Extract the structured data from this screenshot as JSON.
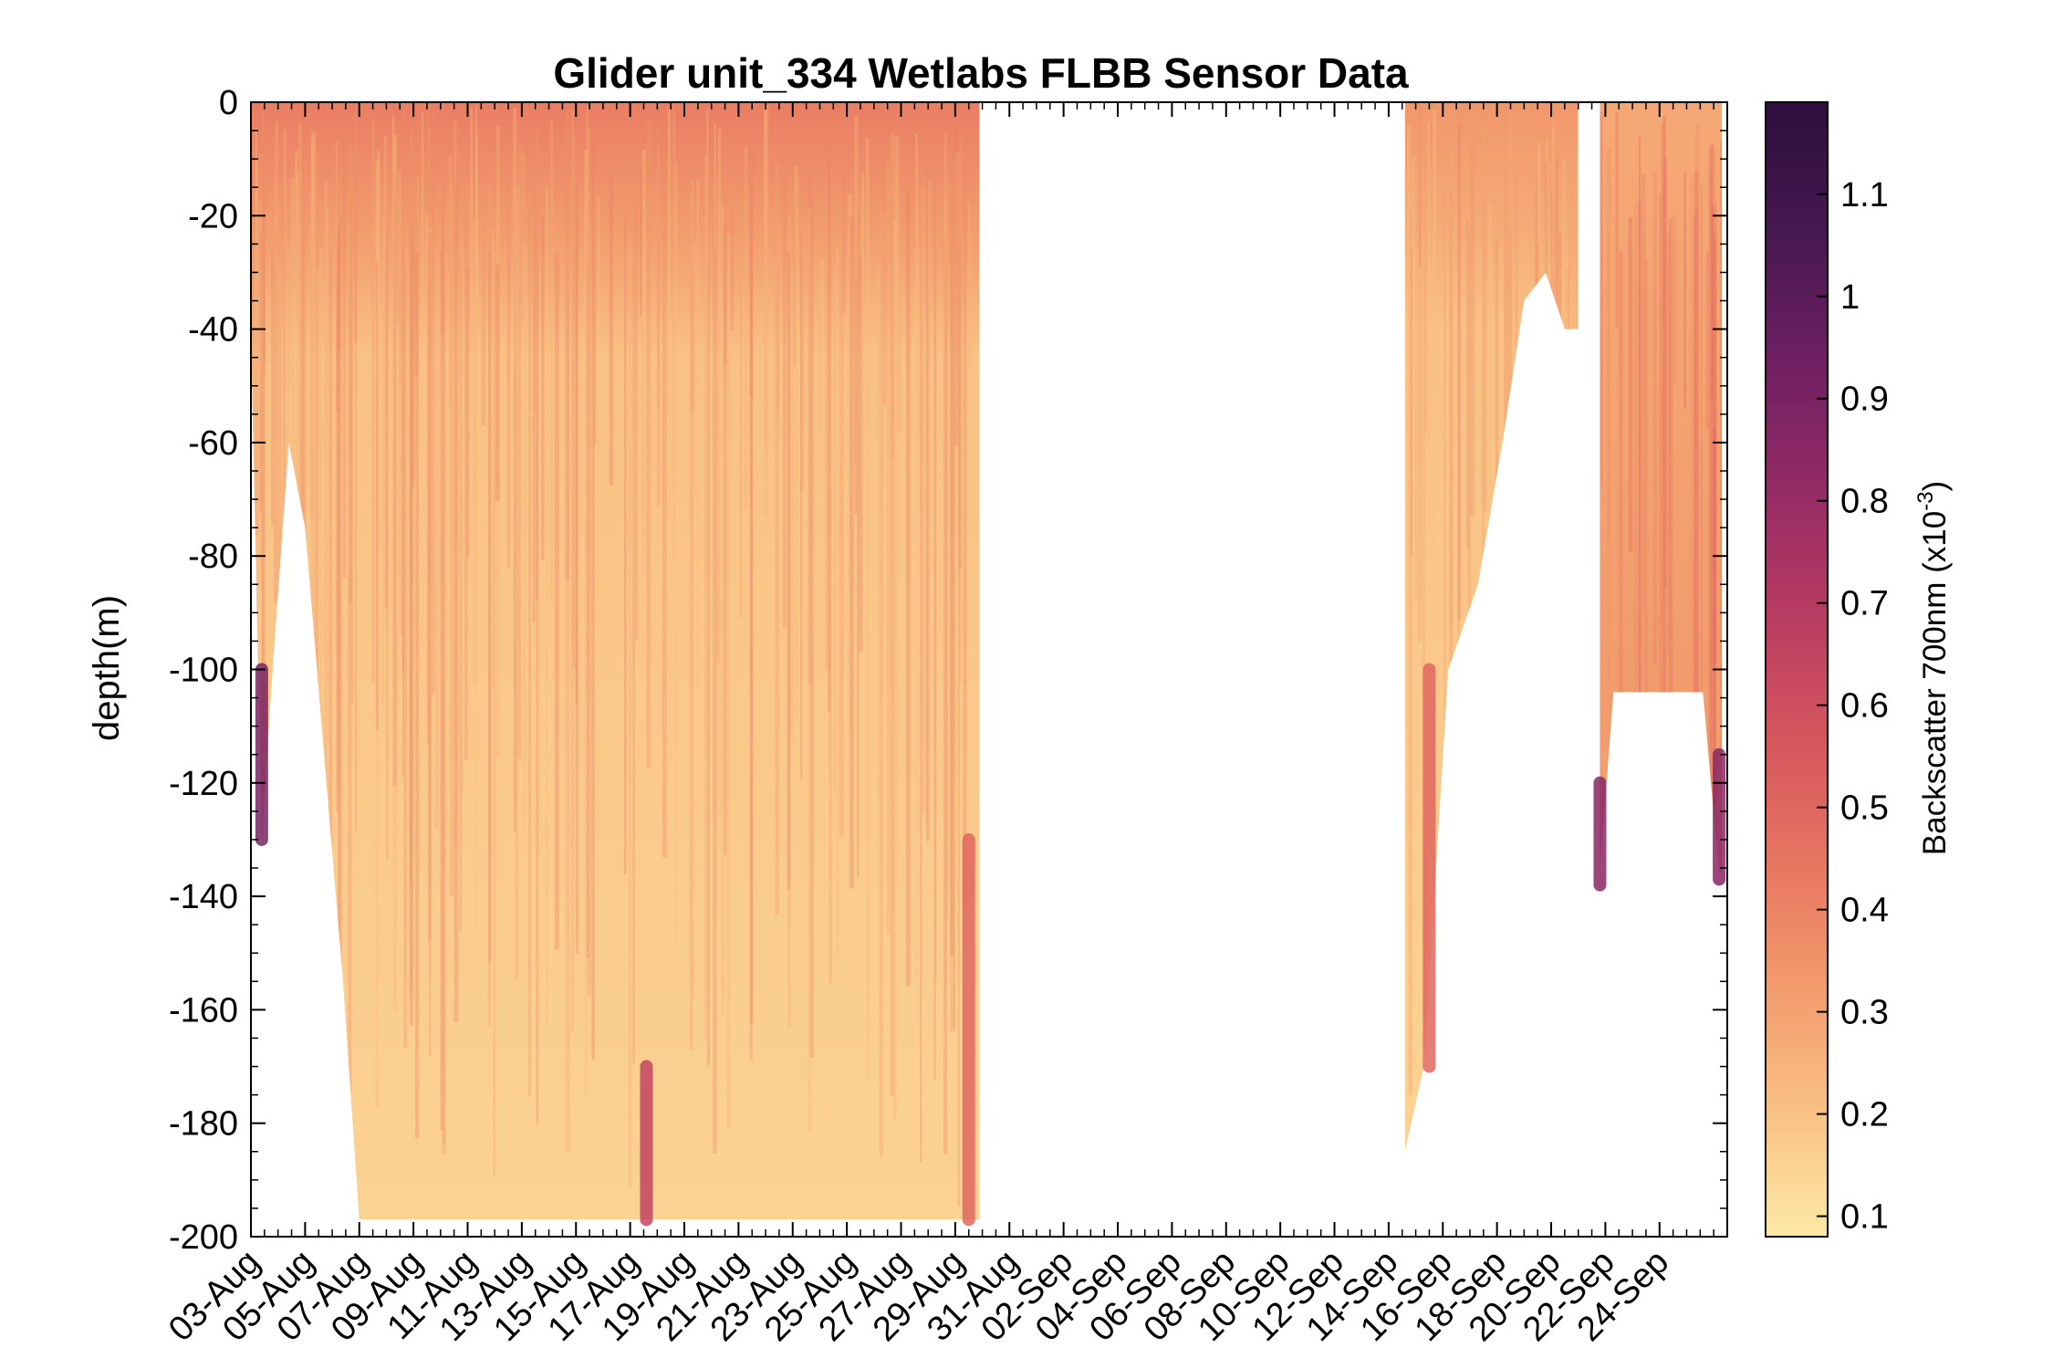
{
  "chart_data": {
    "type": "scatter",
    "title": "Glider unit_334 Wetlabs FLBB Sensor Data",
    "ylabel": "depth(m)",
    "colorbar_label_main": "Backscatter 700nm (x10",
    "colorbar_label_exp": "-3",
    "colorbar_label_close": ")",
    "ylim": [
      -200,
      0
    ],
    "yticks": [
      0,
      -20,
      -40,
      -60,
      -80,
      -100,
      -120,
      -140,
      -160,
      -180,
      -200
    ],
    "ytick_labels": [
      "0",
      "-20",
      "-40",
      "-60",
      "-80",
      "-100",
      "-120",
      "-140",
      "-160",
      "-180",
      "-200"
    ],
    "xlim_days": [
      0,
      54.5
    ],
    "xtick_labels": [
      "03-Aug",
      "05-Aug",
      "07-Aug",
      "09-Aug",
      "11-Aug",
      "13-Aug",
      "15-Aug",
      "17-Aug",
      "19-Aug",
      "21-Aug",
      "23-Aug",
      "25-Aug",
      "27-Aug",
      "29-Aug",
      "31-Aug",
      "02-Sep",
      "04-Sep",
      "06-Sep",
      "08-Sep",
      "10-Sep",
      "12-Sep",
      "14-Sep",
      "16-Sep",
      "18-Sep",
      "20-Sep",
      "22-Sep",
      "24-Sep"
    ],
    "colorbar": {
      "colormap": "matter",
      "range": [
        0.08,
        1.19
      ],
      "ticks": [
        0.1,
        0.2,
        0.3,
        0.4,
        0.5,
        0.6,
        0.7,
        0.8,
        0.9,
        1,
        1.1
      ],
      "tick_labels": [
        "0.1",
        "0.2",
        "0.3",
        "0.4",
        "0.5",
        "0.6",
        "0.7",
        "0.8",
        "0.9",
        "1",
        "1.1"
      ],
      "stops": [
        "#fde9a5",
        "#f9c083",
        "#f29a6c",
        "#e77460",
        "#d5545e",
        "#b63a62",
        "#922a66",
        "#6c1f62",
        "#451850",
        "#2f0f3d"
      ]
    },
    "segments": [
      {
        "name": "deployment-1",
        "start_day": 0,
        "end_day": 26.9,
        "bottom_profile": [
          [
            0,
            -40
          ],
          [
            0.4,
            -130
          ],
          [
            0.8,
            -100
          ],
          [
            1.4,
            -60
          ],
          [
            2.0,
            -75
          ],
          [
            3.4,
            -155
          ],
          [
            4.0,
            -197
          ],
          [
            26.9,
            -197
          ]
        ],
        "surface_layer": {
          "top": 0,
          "bottom": -45,
          "value_top": 0.42,
          "value_bottom": 0.2
        },
        "deep_value": 0.15
      },
      {
        "name": "deployment-2",
        "start_day": 42.6,
        "end_day": 49.0,
        "bottom_profile": [
          [
            42.6,
            -185
          ],
          [
            43.3,
            -170
          ],
          [
            44.2,
            -100
          ],
          [
            45.3,
            -85
          ],
          [
            46.2,
            -60
          ],
          [
            47.0,
            -35
          ],
          [
            47.8,
            -30
          ],
          [
            48.5,
            -40
          ],
          [
            49.0,
            -40
          ]
        ],
        "surface_layer": {
          "top": 0,
          "bottom": -40,
          "value_top": 0.34,
          "value_bottom": 0.2
        },
        "deep_value": 0.15
      },
      {
        "name": "deployment-3",
        "start_day": 49.8,
        "end_day": 54.3,
        "bottom_profile": [
          [
            49.8,
            -135
          ],
          [
            50.3,
            -104
          ],
          [
            53.6,
            -104
          ],
          [
            54.2,
            -136
          ],
          [
            54.3,
            -136
          ]
        ],
        "surface_layer": {
          "top": 0,
          "bottom": -100,
          "value_top": 0.28,
          "value_bottom": 0.32
        },
        "deep_value": 0.3
      }
    ],
    "highlights": [
      {
        "day": 0.4,
        "depth_top": -100,
        "depth_bottom": -130,
        "value": 0.9
      },
      {
        "day": 26.5,
        "depth_top": -130,
        "depth_bottom": -197,
        "value": 0.5
      },
      {
        "day": 14.6,
        "depth_top": -170,
        "depth_bottom": -197,
        "value": 0.65
      },
      {
        "day": 49.8,
        "depth_top": -120,
        "depth_bottom": -138,
        "value": 0.85
      },
      {
        "day": 54.2,
        "depth_top": -115,
        "depth_bottom": -137,
        "value": 0.85
      },
      {
        "day": 43.5,
        "depth_top": -100,
        "depth_bottom": -170,
        "value": 0.5
      }
    ]
  }
}
